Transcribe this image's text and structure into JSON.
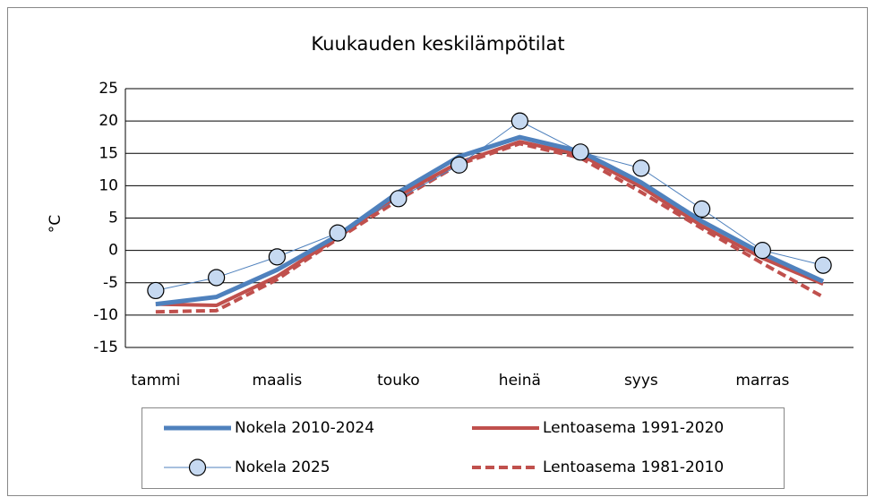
{
  "chart_data": {
    "type": "line",
    "title": "Kuukauden keskilämpötilat",
    "y_label": "°C",
    "categories": [
      "tammi",
      null,
      "maalis",
      null,
      "touko",
      null,
      "heinä",
      null,
      "syys",
      null,
      "marras",
      null
    ],
    "series": [
      {
        "name": "Nokela 2010-2024",
        "color": "#4f81bd",
        "line_width": 5,
        "values": [
          -8.3,
          -7.2,
          -3.0,
          2.3,
          9.0,
          14.5,
          17.5,
          15.3,
          10.5,
          4.5,
          -0.5,
          -4.8
        ]
      },
      {
        "name": "Lentoasema 1991-2020",
        "color": "#c0504d",
        "line_width": 4,
        "values": [
          -8.3,
          -8.5,
          -4.0,
          2.0,
          8.5,
          13.6,
          16.8,
          14.8,
          9.8,
          3.8,
          -1.2,
          -5.2
        ]
      },
      {
        "name": "Nokela 2025",
        "color": "#4f81bd",
        "line_width": 1,
        "marker": "circle",
        "marker_fill": "#c6d9f1",
        "values": [
          -6.2,
          -4.2,
          -1.0,
          2.7,
          8.0,
          13.2,
          20.0,
          15.2,
          12.7,
          6.4,
          0.0,
          -2.3
        ]
      },
      {
        "name": "Lentoasema 1981-2010",
        "color": "#c0504d",
        "line_width": 4,
        "dash": true,
        "values": [
          -9.5,
          -9.3,
          -4.5,
          1.8,
          7.8,
          13.3,
          16.5,
          14.3,
          9.0,
          3.4,
          -2.0,
          -7.2
        ]
      }
    ],
    "ylim": [
      -15,
      25
    ],
    "yticks": [
      -15,
      -10,
      -5,
      0,
      5,
      10,
      15,
      20,
      25
    ],
    "grid": true,
    "legend": "bottom"
  }
}
